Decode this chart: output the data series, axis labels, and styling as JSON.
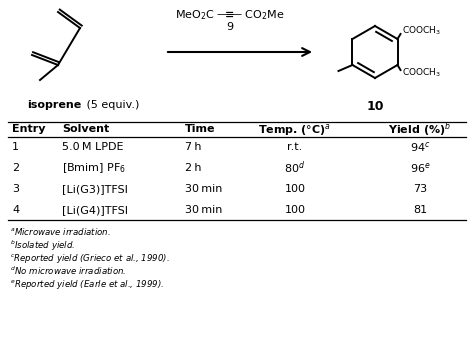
{
  "bg_color": "#ffffff",
  "table_rows": [
    [
      "1",
      "5.0 M LPDE",
      "7 h",
      "r.t.",
      "94",
      "c"
    ],
    [
      "2",
      "[Bmim] PF₆",
      "2 h",
      "80",
      "96",
      "de"
    ],
    [
      "3",
      "[Li(G3)]TFSI",
      "30 min",
      "100",
      "73",
      ""
    ],
    [
      "4",
      "[Li(G4)]TFSI",
      "30 min",
      "100",
      "81",
      ""
    ]
  ],
  "footnotes": [
    [
      "a",
      "Microwave irradiation."
    ],
    [
      "b",
      "Isolated yield."
    ],
    [
      "c",
      "Reported yield (Grieco et al., 1990)."
    ],
    [
      "d",
      "No microwave irradiation."
    ],
    [
      "e",
      "Reported yield (Earle et al., 1999)."
    ]
  ]
}
